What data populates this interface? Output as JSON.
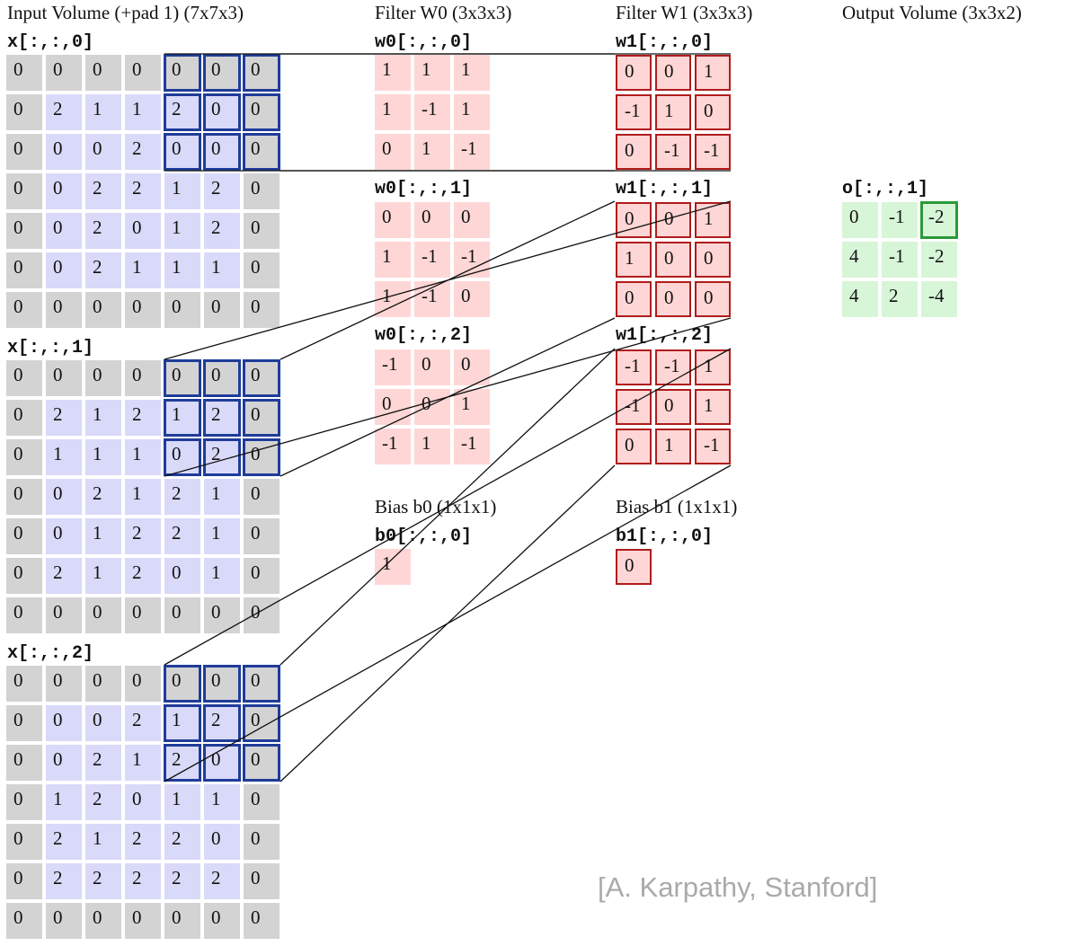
{
  "titles": {
    "input": "Input Volume (+pad 1) (7x7x3)",
    "w0": "Filter W0 (3x3x3)",
    "w1": "Filter W1 (3x3x3)",
    "output": "Output Volume (3x3x2)",
    "bias0": "Bias b0 (1x1x1)",
    "bias1": "Bias b1 (1x1x1)"
  },
  "x_labels": [
    "x[:,:,0]",
    "x[:,:,1]",
    "x[:,:,2]"
  ],
  "x": [
    [
      [
        0,
        0,
        0,
        0,
        0,
        0,
        0
      ],
      [
        0,
        2,
        1,
        1,
        2,
        0,
        0
      ],
      [
        0,
        0,
        0,
        2,
        0,
        0,
        0
      ],
      [
        0,
        0,
        2,
        2,
        1,
        2,
        0
      ],
      [
        0,
        0,
        2,
        0,
        1,
        2,
        0
      ],
      [
        0,
        0,
        2,
        1,
        1,
        1,
        0
      ],
      [
        0,
        0,
        0,
        0,
        0,
        0,
        0
      ]
    ],
    [
      [
        0,
        0,
        0,
        0,
        0,
        0,
        0
      ],
      [
        0,
        2,
        1,
        2,
        1,
        2,
        0
      ],
      [
        0,
        1,
        1,
        1,
        0,
        2,
        0
      ],
      [
        0,
        0,
        2,
        1,
        2,
        1,
        0
      ],
      [
        0,
        0,
        1,
        2,
        2,
        1,
        0
      ],
      [
        0,
        2,
        1,
        2,
        0,
        1,
        0
      ],
      [
        0,
        0,
        0,
        0,
        0,
        0,
        0
      ]
    ],
    [
      [
        0,
        0,
        0,
        0,
        0,
        0,
        0
      ],
      [
        0,
        0,
        0,
        2,
        1,
        2,
        0
      ],
      [
        0,
        0,
        2,
        1,
        2,
        0,
        0
      ],
      [
        0,
        1,
        2,
        0,
        1,
        1,
        0
      ],
      [
        0,
        2,
        1,
        2,
        2,
        0,
        0
      ],
      [
        0,
        2,
        2,
        2,
        2,
        2,
        0
      ],
      [
        0,
        0,
        0,
        0,
        0,
        0,
        0
      ]
    ]
  ],
  "w0_labels": [
    "w0[:,:,0]",
    "w0[:,:,1]",
    "w0[:,:,2]"
  ],
  "w0": [
    [
      [
        1,
        1,
        1
      ],
      [
        1,
        -1,
        1
      ],
      [
        0,
        1,
        -1
      ]
    ],
    [
      [
        0,
        0,
        0
      ],
      [
        1,
        -1,
        -1
      ],
      [
        1,
        -1,
        0
      ]
    ],
    [
      [
        -1,
        0,
        0
      ],
      [
        0,
        0,
        1
      ],
      [
        -1,
        1,
        -1
      ]
    ]
  ],
  "w1_labels": [
    "w1[:,:,0]",
    "w1[:,:,1]",
    "w1[:,:,2]"
  ],
  "w1": [
    [
      [
        0,
        0,
        1
      ],
      [
        -1,
        1,
        0
      ],
      [
        0,
        -1,
        -1
      ]
    ],
    [
      [
        0,
        0,
        1
      ],
      [
        1,
        0,
        0
      ],
      [
        0,
        0,
        0
      ]
    ],
    [
      [
        -1,
        -1,
        1
      ],
      [
        -1,
        0,
        1
      ],
      [
        0,
        1,
        -1
      ]
    ]
  ],
  "b0_label": "b0[:,:,0]",
  "b0": 1,
  "b1_label": "b1[:,:,0]",
  "b1": 0,
  "o_label": "o[:,:,1]",
  "o": [
    [
      0,
      -1,
      -2
    ],
    [
      4,
      -1,
      -2
    ],
    [
      4,
      2,
      -4
    ]
  ],
  "highlight": {
    "input_window_col_start": 4,
    "input_window_row_start": 0,
    "output_row": 0,
    "output_col": 2
  },
  "credit": "[A. Karpathy, Stanford]",
  "colors": {
    "pad_gray": "#d3d3d3",
    "input_blue": "#d9d9f9",
    "filter_pink": "#ffd6d6",
    "filter_red_border": "#b01c1c",
    "window_blue_border": "#1f3c99",
    "output_green": "#d7f5d7",
    "output_green_border": "#2a9a3a"
  }
}
